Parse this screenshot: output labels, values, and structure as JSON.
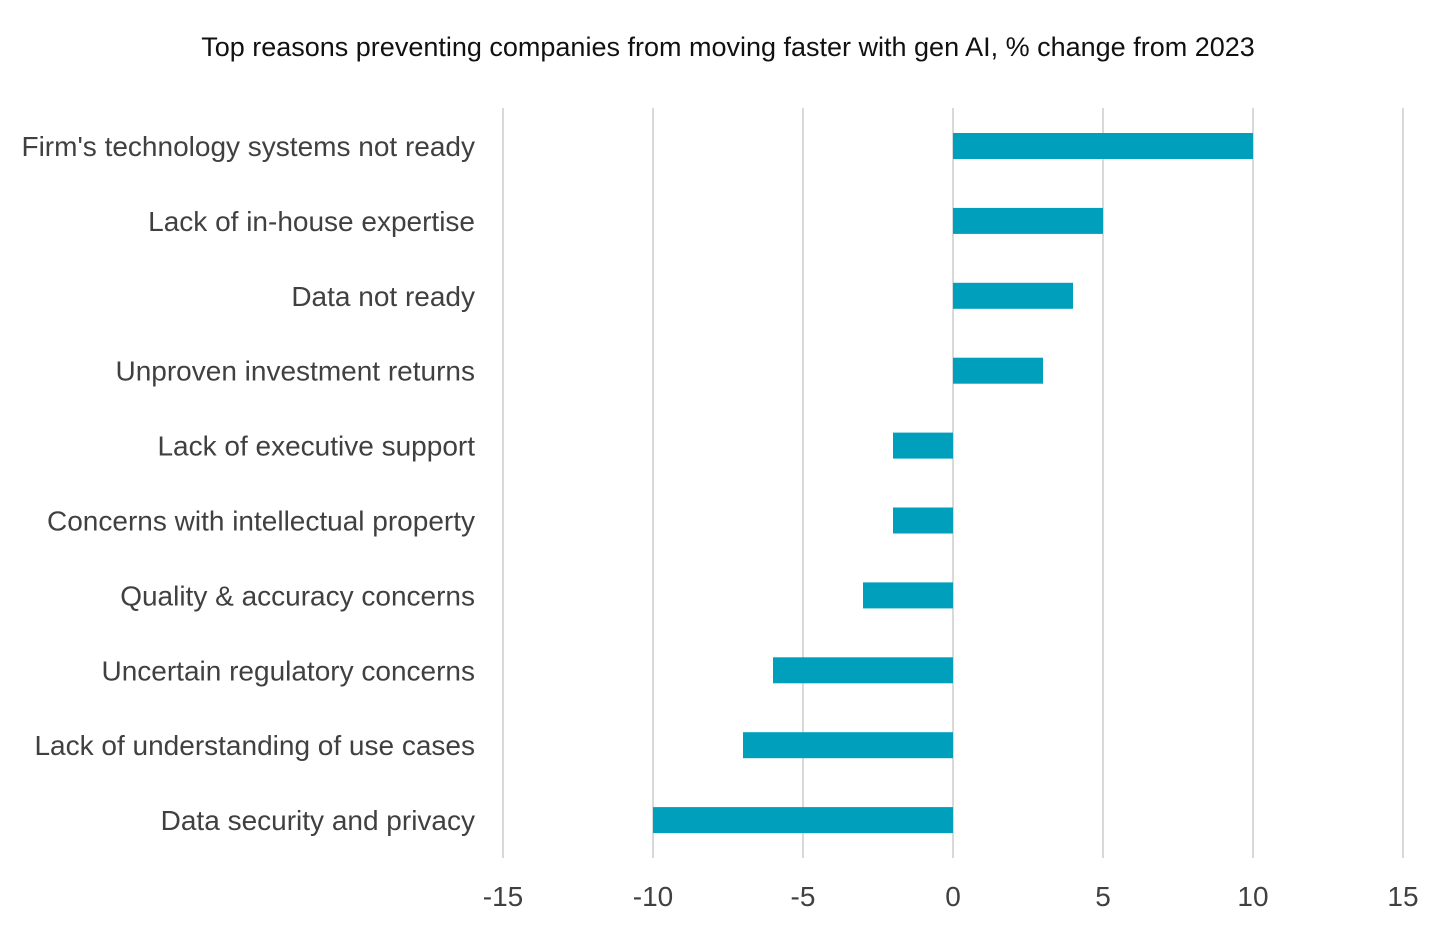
{
  "chart_data": {
    "type": "bar",
    "orientation": "horizontal",
    "title": "Top reasons preventing companies from moving faster with gen AI, % change from 2023",
    "xlabel": "",
    "ylabel": "",
    "categories": [
      "Firm's technology systems not ready",
      "Lack of in-house expertise",
      "Data not ready",
      "Unproven investment returns",
      "Lack of executive support",
      "Concerns with intellectual property",
      "Quality & accuracy concerns",
      "Uncertain regulatory concerns",
      "Lack of understanding of use cases",
      "Data security and privacy"
    ],
    "values": [
      10,
      5,
      4,
      3,
      -2,
      -2,
      -3,
      -6,
      -7,
      -10
    ],
    "xlim": [
      -15,
      15
    ],
    "xticks": [
      -15,
      -10,
      -5,
      0,
      5,
      10,
      15
    ],
    "grid": "vertical",
    "legend": "none",
    "bar_color": "#00a0bd"
  }
}
